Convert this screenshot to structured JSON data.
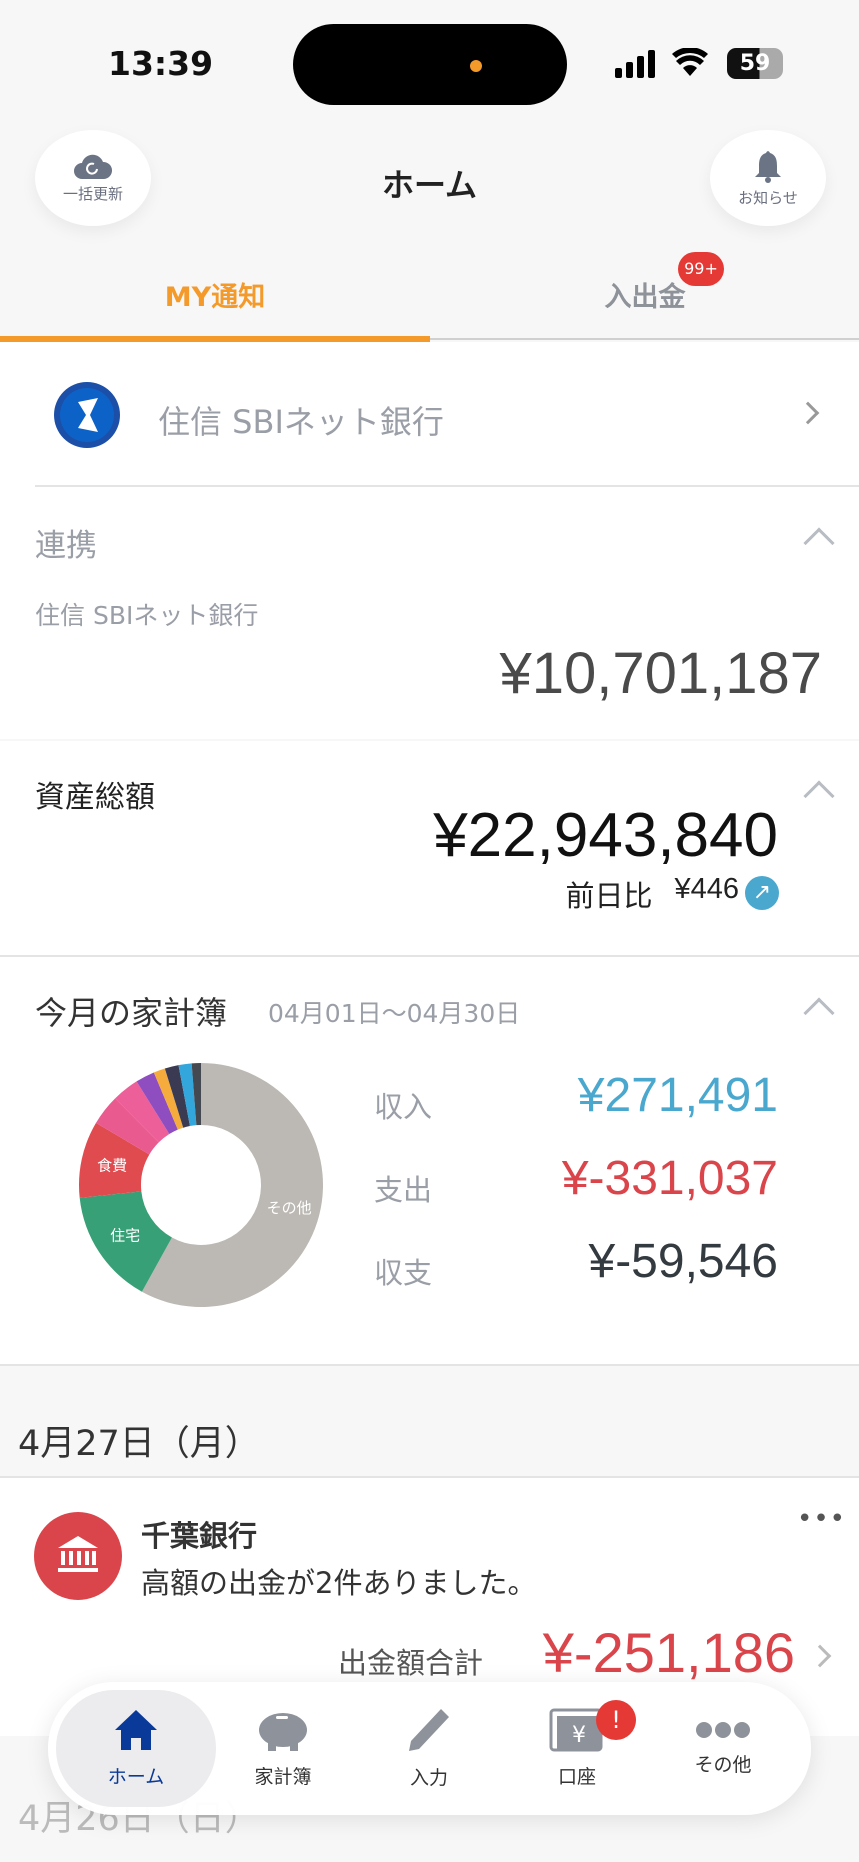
{
  "status": {
    "time": "13:39",
    "battery": "59"
  },
  "header": {
    "title": "ホーム",
    "refresh_label": "一括更新",
    "notice_label": "お知らせ"
  },
  "tabs": [
    {
      "label": "MY通知",
      "active": true
    },
    {
      "label": "入出金",
      "badge": "99+"
    }
  ],
  "bank_row": {
    "name": "住信 SBIネット銀行"
  },
  "linked": {
    "title": "連携",
    "bank": "住信 SBIネット銀行",
    "amount": "¥10,701,187"
  },
  "assets": {
    "title": "資産総額",
    "amount": "¥22,943,840",
    "diff_label": "前日比",
    "diff": "¥446"
  },
  "budget": {
    "title": "今月の家計簿",
    "period": "04月01日〜04月30日",
    "rows": [
      {
        "label": "収入",
        "value": "¥271,491",
        "color": "#4aa8cf"
      },
      {
        "label": "支出",
        "value": "¥-331,037",
        "color": "#d9454a"
      },
      {
        "label": "収支",
        "value": "¥-59,546",
        "color": "#333a40"
      }
    ],
    "slices": [
      {
        "label": "その他",
        "pct": 57,
        "color": "#bcb8b3"
      },
      {
        "label": "住宅",
        "pct": 15,
        "color": "#38a077"
      },
      {
        "label": "食費",
        "pct": 10,
        "color": "#e04b50"
      },
      {
        "label": "",
        "pct": 4,
        "color": "#e95a8f"
      },
      {
        "label": "",
        "pct": 3.5,
        "color": "#ec5f98"
      },
      {
        "label": "",
        "pct": 2.5,
        "color": "#8e4ebf"
      },
      {
        "label": "",
        "pct": 1.5,
        "color": "#f6ac3c"
      },
      {
        "label": "",
        "pct": 1.8,
        "color": "#3a3a52"
      },
      {
        "label": "",
        "pct": 1.7,
        "color": "#33a6dc"
      },
      {
        "label": "",
        "pct": 1.2,
        "color": "#444850"
      }
    ]
  },
  "feed": {
    "date": "4月27日（月）",
    "card": {
      "bank": "千葉銀行",
      "message": "高額の出金が2件ありました。",
      "total_label": "出金額合計",
      "total": "¥-251,186"
    },
    "next_date": "4月26日（日）"
  },
  "nav": [
    {
      "label": "ホーム",
      "icon": "home-icon"
    },
    {
      "label": "家計簿",
      "icon": "piggy-bank-icon"
    },
    {
      "label": "入力",
      "icon": "pencil-icon"
    },
    {
      "label": "口座",
      "icon": "account-yen-icon",
      "badge": "!"
    },
    {
      "label": "その他",
      "icon": "more-icon"
    }
  ],
  "colors": {
    "accent": "#f39a2b",
    "nav_active": "#0a3a99"
  }
}
